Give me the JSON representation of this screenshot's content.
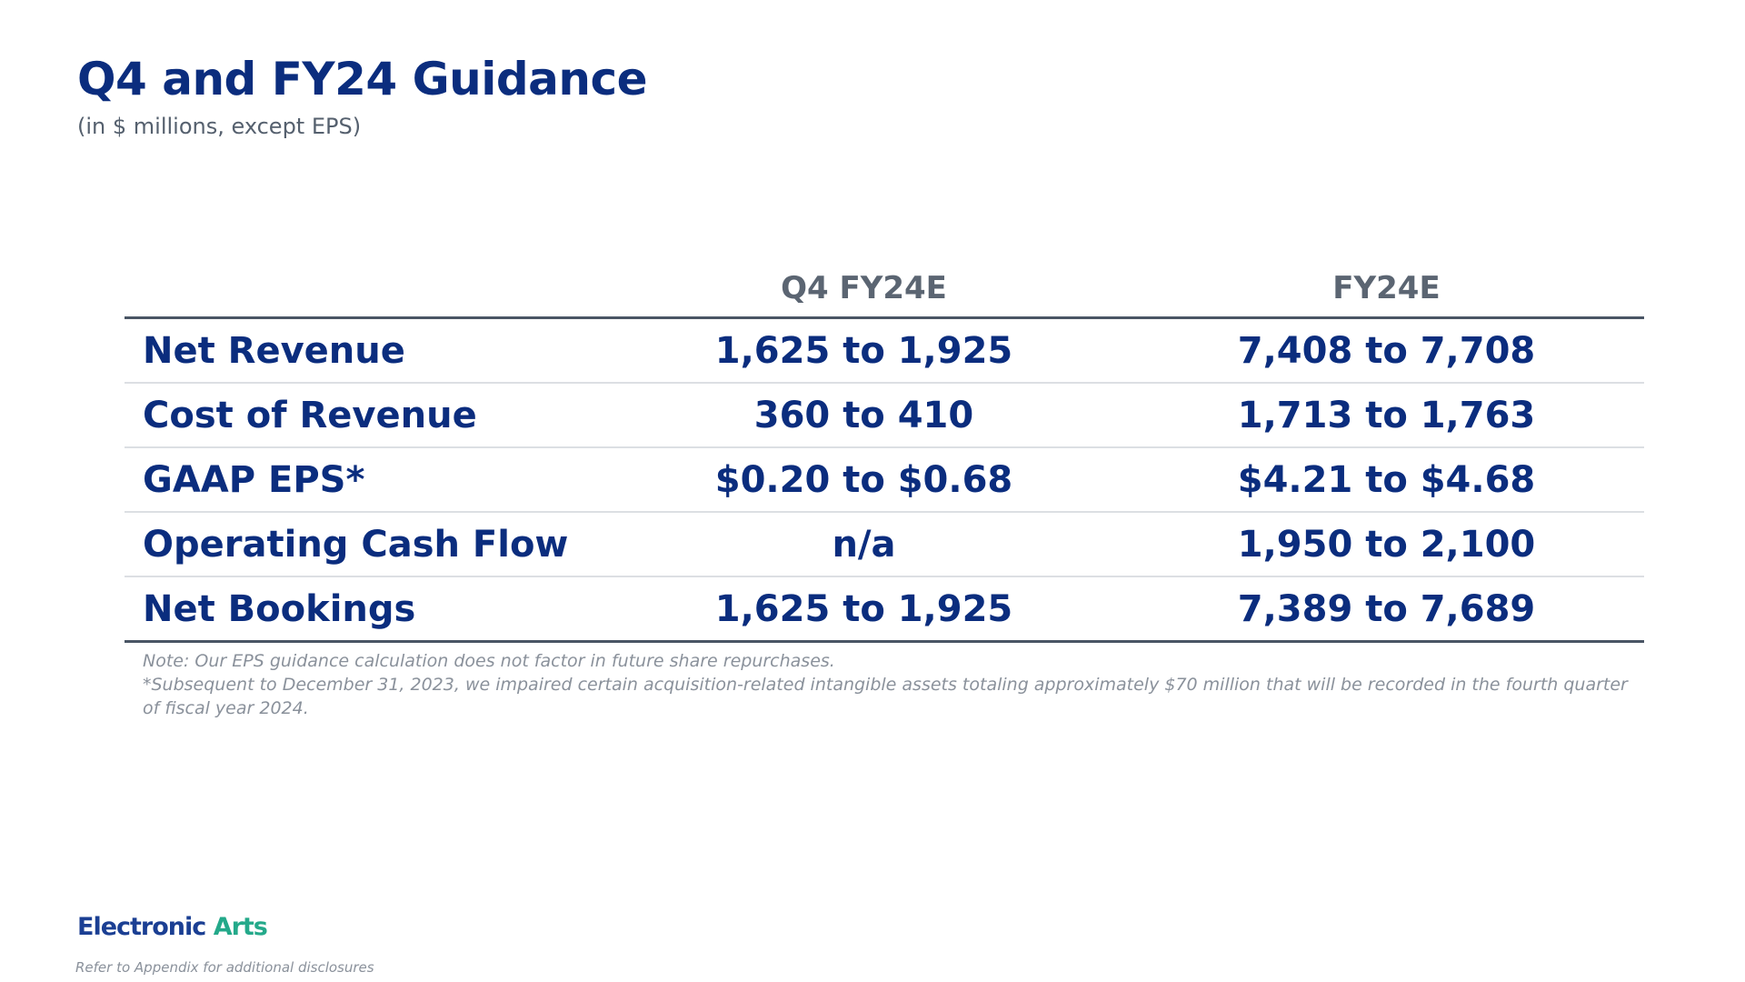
{
  "slide": {
    "title": "Q4 and FY24 Guidance",
    "subtitle": "(in $ millions, except EPS)"
  },
  "table": {
    "headers": [
      "",
      "Q4 FY24E",
      "FY24E"
    ],
    "rows": [
      {
        "label": "Net Revenue",
        "q4": "1,625 to 1,925",
        "fy": "7,408 to 7,708"
      },
      {
        "label": "Cost of Revenue",
        "q4": "360 to 410",
        "fy": "1,713 to 1,763"
      },
      {
        "label": "GAAP EPS*",
        "q4": "$0.20 to $0.68",
        "fy": "$4.21 to $4.68"
      },
      {
        "label": "Operating Cash Flow",
        "q4": "n/a",
        "fy": "1,950 to 2,100"
      },
      {
        "label": "Net Bookings",
        "q4": "1,625 to 1,925",
        "fy": "7,389 to 7,689"
      }
    ]
  },
  "notes": {
    "line1": "Note: Our EPS guidance calculation does not factor in future share repurchases.",
    "line2": "*Subsequent to December 31, 2023, we impaired certain acquisition-related intangible assets totaling approximately $70 million that will be recorded in the fourth quarter of fiscal year 2024."
  },
  "logo": {
    "word1": "Electronic",
    "word2": "Arts",
    "colors": {
      "word1": "#1b3f93",
      "word2": "#24a98a"
    }
  },
  "footer": {
    "text": "Refer to Appendix for additional disclosures"
  },
  "colors": {
    "title": "#0b2d7e",
    "header_text": "#5b6572",
    "rule_dark": "#4a5565",
    "rule_light": "#dcdfe3",
    "note_text": "#8a919b"
  }
}
